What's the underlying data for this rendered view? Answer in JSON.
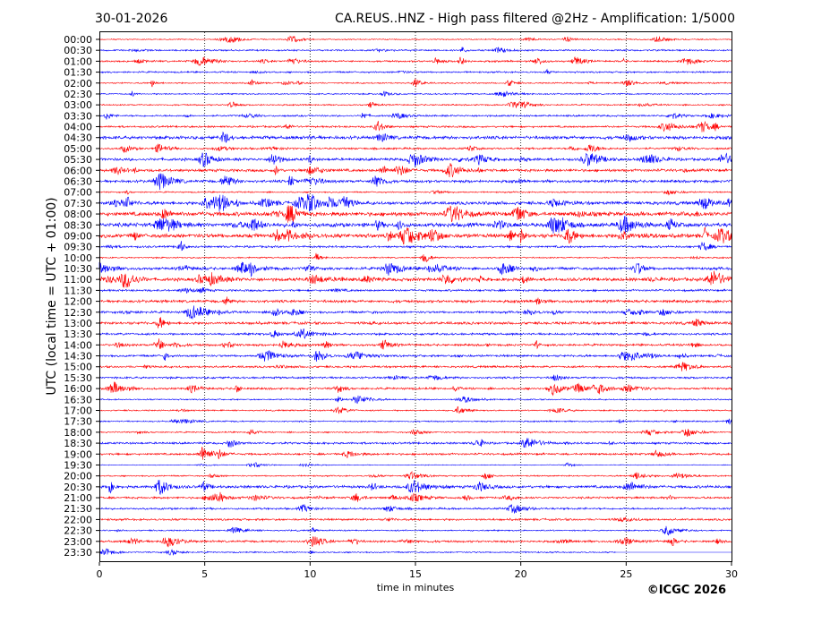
{
  "chart_data": {
    "type": "line",
    "date": "30-01-2026",
    "title": "CA.REUS..HNZ - High pass filtered @2Hz - Amplification: 1/5000",
    "xlabel": "time in minutes",
    "ylabel": "UTC (local time = UTC + 01:00)",
    "xlim": [
      0,
      30
    ],
    "xticks": [
      "0",
      "5",
      "10",
      "15",
      "20",
      "25",
      "30"
    ],
    "grid": "vertical dotted at 5-minute ticks",
    "colors": [
      "#ff0000",
      "#0000ff"
    ],
    "data_end_minute_last_row": 24.5,
    "rows": [
      {
        "label": "00:00",
        "noise_level": 0.8
      },
      {
        "label": "00:30",
        "noise_level": 1.2
      },
      {
        "label": "01:00",
        "noise_level": 1.3
      },
      {
        "label": "01:30",
        "noise_level": 1.2
      },
      {
        "label": "02:00",
        "noise_level": 1.0
      },
      {
        "label": "02:30",
        "noise_level": 1.0
      },
      {
        "label": "03:00",
        "noise_level": 1.0
      },
      {
        "label": "03:30",
        "noise_level": 1.3
      },
      {
        "label": "04:00",
        "noise_level": 1.4
      },
      {
        "label": "04:30",
        "noise_level": 2.4
      },
      {
        "label": "05:00",
        "noise_level": 1.4
      },
      {
        "label": "05:30",
        "noise_level": 2.0
      },
      {
        "label": "06:00",
        "noise_level": 2.0
      },
      {
        "label": "06:30",
        "noise_level": 2.0
      },
      {
        "label": "07:00",
        "noise_level": 1.0
      },
      {
        "label": "07:30",
        "noise_level": 2.4
      },
      {
        "label": "08:00",
        "noise_level": 3.0
      },
      {
        "label": "08:30",
        "noise_level": 3.0
      },
      {
        "label": "09:00",
        "noise_level": 3.0
      },
      {
        "label": "09:30",
        "noise_level": 1.5
      },
      {
        "label": "10:00",
        "noise_level": 1.0
      },
      {
        "label": "10:30",
        "noise_level": 2.0
      },
      {
        "label": "11:00",
        "noise_level": 2.4
      },
      {
        "label": "11:30",
        "noise_level": 1.5
      },
      {
        "label": "12:00",
        "noise_level": 2.0
      },
      {
        "label": "12:30",
        "noise_level": 1.6
      },
      {
        "label": "13:00",
        "noise_level": 2.0
      },
      {
        "label": "13:30",
        "noise_level": 1.6
      },
      {
        "label": "14:00",
        "noise_level": 1.6
      },
      {
        "label": "14:30",
        "noise_level": 1.6
      },
      {
        "label": "15:00",
        "noise_level": 1.5
      },
      {
        "label": "15:30",
        "noise_level": 1.5
      },
      {
        "label": "16:00",
        "noise_level": 1.5
      },
      {
        "label": "16:30",
        "noise_level": 1.0
      },
      {
        "label": "17:00",
        "noise_level": 1.0
      },
      {
        "label": "17:30",
        "noise_level": 1.0
      },
      {
        "label": "18:00",
        "noise_level": 1.0
      },
      {
        "label": "18:30",
        "noise_level": 1.5
      },
      {
        "label": "19:00",
        "noise_level": 1.5
      },
      {
        "label": "19:30",
        "noise_level": 0.5
      },
      {
        "label": "20:00",
        "noise_level": 1.0
      },
      {
        "label": "20:30",
        "noise_level": 2.0
      },
      {
        "label": "21:00",
        "noise_level": 1.5
      },
      {
        "label": "21:30",
        "noise_level": 1.4
      },
      {
        "label": "22:00",
        "noise_level": 1.5
      },
      {
        "label": "22:30",
        "noise_level": 1.0
      },
      {
        "label": "23:00",
        "noise_level": 1.5
      },
      {
        "label": "23:30",
        "noise_level": 1.0
      }
    ]
  },
  "footer": {
    "copyright": "©ICGC 2026"
  }
}
